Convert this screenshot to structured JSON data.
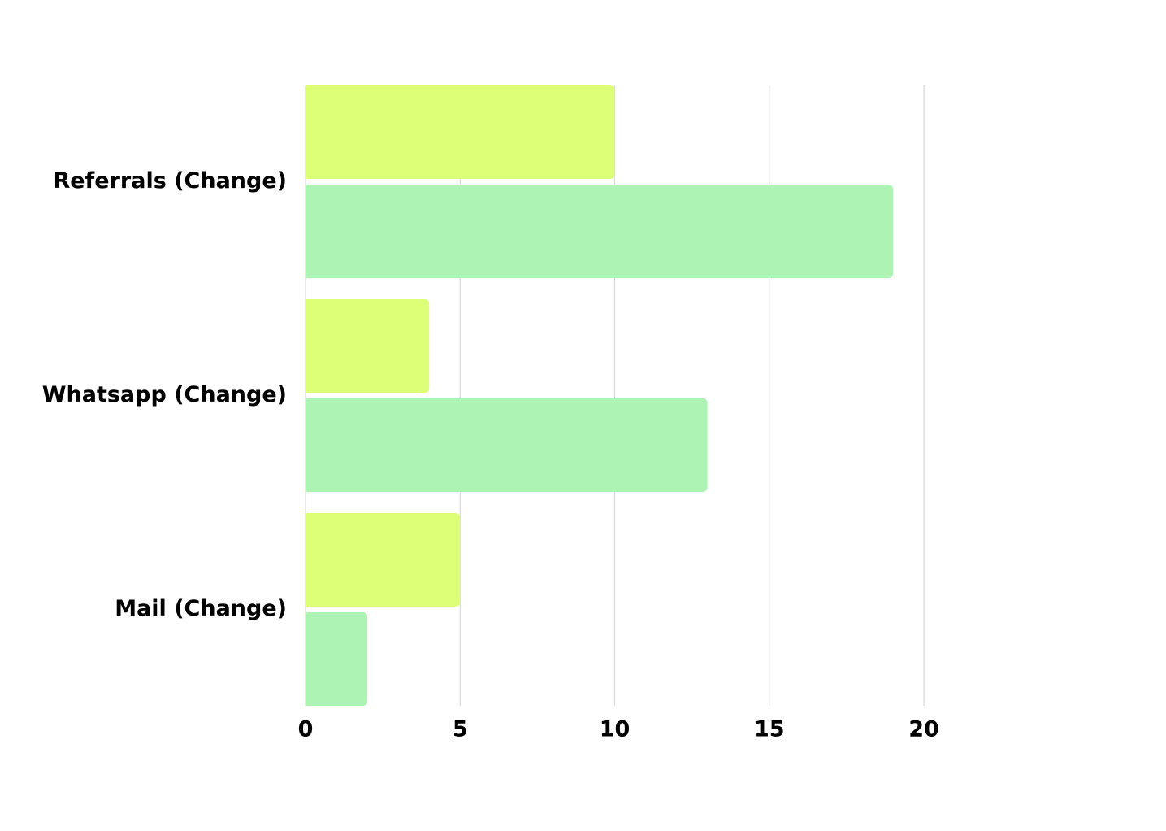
{
  "chart_data": {
    "type": "hbar",
    "categories": [
      "Referrals (Change)",
      "Whatsapp (Change)",
      "Mail (Change)"
    ],
    "series": [
      {
        "color": "#ddff77",
        "values": [
          10,
          4,
          5
        ]
      },
      {
        "color": "#adf4b4",
        "values": [
          19,
          13,
          2
        ]
      }
    ],
    "xlim": [
      0,
      20
    ],
    "xticks": [
      0,
      5,
      10,
      15,
      20
    ],
    "grid": true
  }
}
